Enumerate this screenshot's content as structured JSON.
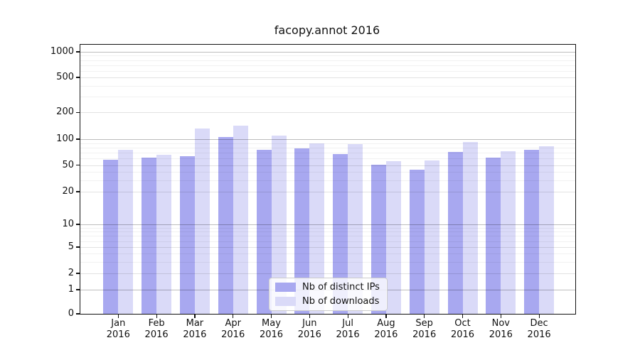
{
  "chart_data": {
    "type": "bar",
    "title": "facopy.annot 2016",
    "categories": [
      [
        "Jan",
        "2016"
      ],
      [
        "Feb",
        "2016"
      ],
      [
        "Mar",
        "2016"
      ],
      [
        "Apr",
        "2016"
      ],
      [
        "May",
        "2016"
      ],
      [
        "Jun",
        "2016"
      ],
      [
        "Jul",
        "2016"
      ],
      [
        "Aug",
        "2016"
      ],
      [
        "Sep",
        "2016"
      ],
      [
        "Oct",
        "2016"
      ],
      [
        "Nov",
        "2016"
      ],
      [
        "Dec",
        "2016"
      ]
    ],
    "series": [
      {
        "name": "Nb of distinct IPs",
        "color": "#a8a8f0",
        "values": [
          58,
          61,
          64,
          106,
          76,
          78,
          67,
          51,
          43,
          71,
          61,
          76
        ]
      },
      {
        "name": "Nb of downloads",
        "color": "#dadaf8",
        "values": [
          75,
          66,
          132,
          143,
          110,
          89,
          87,
          56,
          57,
          93,
          72,
          83
        ]
      }
    ],
    "yscale": "symlog",
    "yticks": [
      0,
      1,
      2,
      5,
      10,
      20,
      50,
      100,
      200,
      500,
      1000
    ],
    "ylim": [
      0,
      1090
    ],
    "grid": true,
    "legend_position": "lower center"
  }
}
